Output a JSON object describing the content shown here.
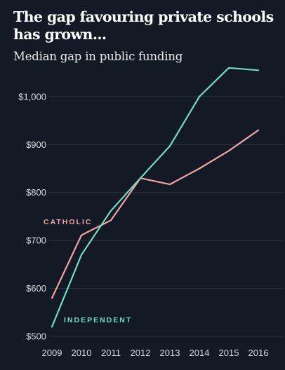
{
  "header": {
    "title": "The gap favouring private schools has grown...",
    "subtitle": "Median gap in public funding"
  },
  "colors": {
    "background": "#131a26",
    "grid": "#2b3240",
    "catholic": "#f0a3a0",
    "independent": "#6fdcc3"
  },
  "chart_data": {
    "type": "line",
    "title": "The gap favouring private schools has grown...",
    "subtitle": "Median gap in public funding",
    "xlabel": "",
    "ylabel": "",
    "x": [
      2009,
      2010,
      2011,
      2012,
      2013,
      2014,
      2015,
      2016
    ],
    "x_tick_labels": [
      "2009",
      "2010",
      "2011",
      "2012",
      "2013",
      "2014",
      "2015",
      "2016"
    ],
    "y_ticks": [
      500,
      600,
      700,
      800,
      900,
      1000
    ],
    "y_tick_labels": [
      "$500",
      "$600",
      "$700",
      "$800",
      "$900",
      "$1,000"
    ],
    "ylim": [
      500,
      1070
    ],
    "grid": true,
    "legend": "inline labels",
    "series": [
      {
        "name": "CATHOLIC",
        "color": "#f0a3a0",
        "values": [
          580,
          711,
          742,
          830,
          817,
          850,
          887,
          930
        ]
      },
      {
        "name": "INDEPENDENT",
        "color": "#6fdcc3",
        "values": [
          520,
          670,
          762,
          830,
          897,
          1000,
          1060,
          1055
        ]
      }
    ]
  }
}
